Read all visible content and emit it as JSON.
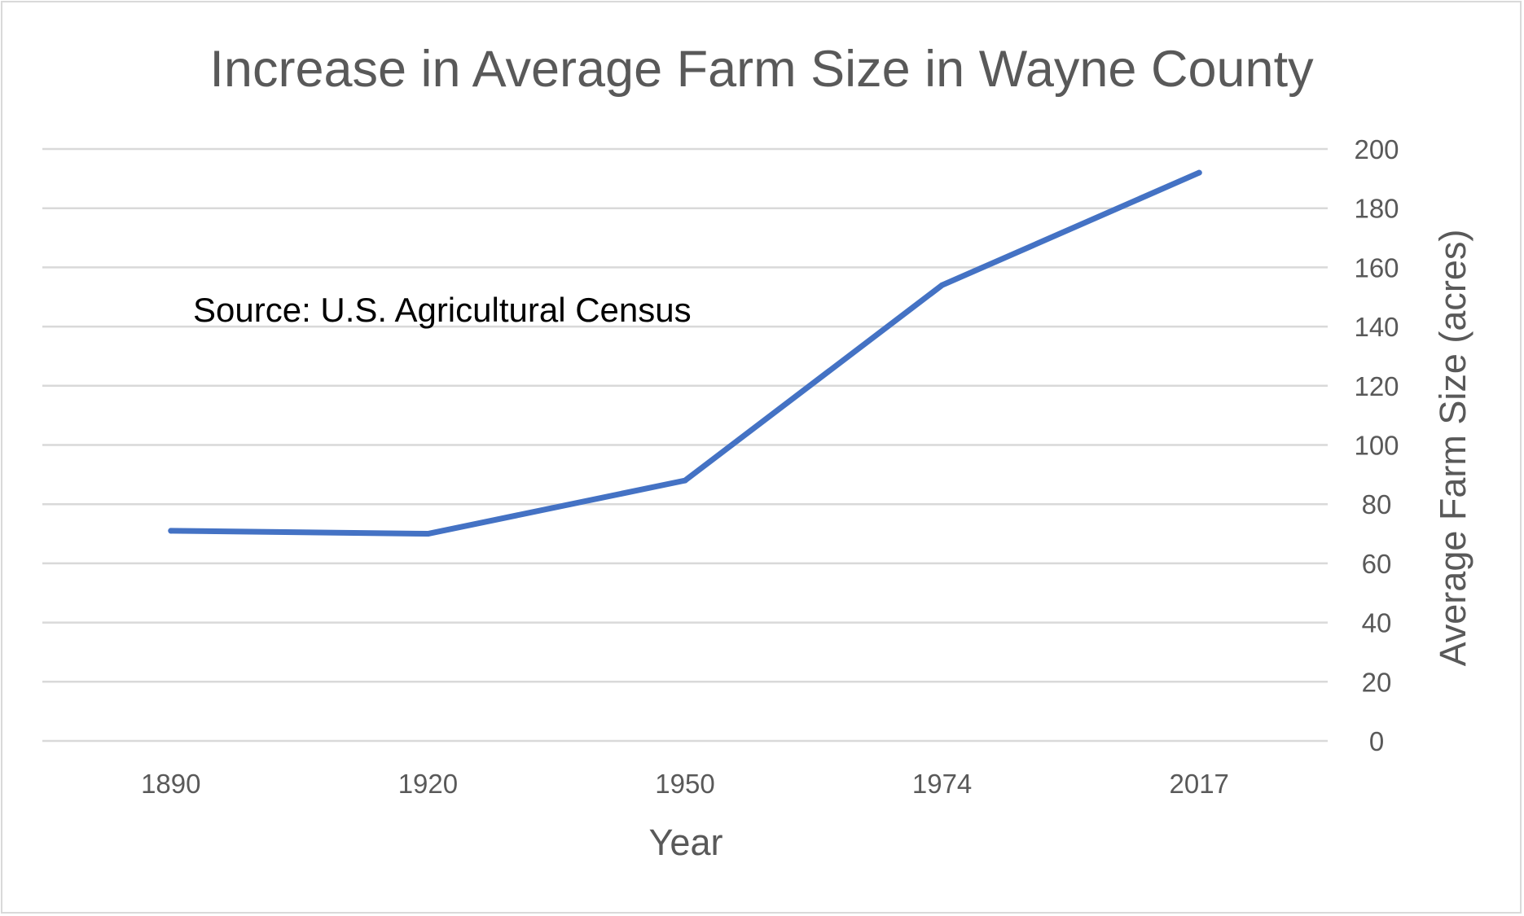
{
  "chart_data": {
    "type": "line",
    "title": "Increase in Average Farm Size in Wayne County",
    "xlabel": "Year",
    "ylabel": "Average Farm Size (acres)",
    "categories": [
      "1890",
      "1920",
      "1950",
      "1974",
      "2017"
    ],
    "series": [
      {
        "values": [
          71,
          70,
          88,
          154,
          192
        ]
      }
    ],
    "ylim": [
      0,
      200
    ],
    "yticks": [
      0,
      20,
      40,
      60,
      80,
      100,
      120,
      140,
      160,
      180,
      200
    ],
    "y_axis_side": "right",
    "grid": true,
    "legend": "none",
    "annotation": "Source: U.S. Agricultural Census",
    "colors": {
      "series": "#4472c4",
      "grid": "#d9d9d9",
      "text": "#595959"
    }
  }
}
